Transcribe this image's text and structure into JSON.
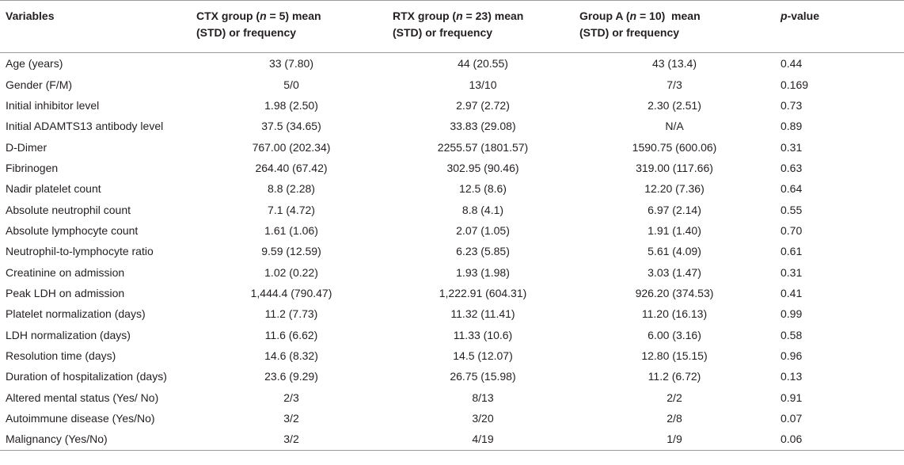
{
  "headers": {
    "variables": "Variables",
    "ctx": {
      "pre": "CTX group (",
      "n_var": "n",
      "post": " = 5) mean",
      "line2": "(STD) or frequency"
    },
    "rtx": {
      "pre": "RTX group (",
      "n_var": "n",
      "post": " = 23) mean",
      "line2": "(STD) or frequency"
    },
    "groupa": {
      "pre": "Group A (",
      "n_var": "n",
      "post": " = 10)  mean",
      "line2": "(STD) or frequency"
    },
    "pvalue": {
      "var": "p",
      "post": "-value"
    }
  },
  "rows": [
    {
      "variable": "Age (years)",
      "ctx": "33 (7.80)",
      "rtx": "44 (20.55)",
      "groupa": "43 (13.4)",
      "p": "0.44"
    },
    {
      "variable": "Gender (F/M)",
      "ctx": "5/0",
      "rtx": "13/10",
      "groupa": "7/3",
      "p": "0.169"
    },
    {
      "variable": "Initial inhibitor level",
      "ctx": "1.98 (2.50)",
      "rtx": "2.97 (2.72)",
      "groupa": "2.30 (2.51)",
      "p": "0.73"
    },
    {
      "variable": "Initial ADAMTS13 antibody level",
      "ctx": "37.5 (34.65)",
      "rtx": "33.83 (29.08)",
      "groupa": "N/A",
      "p": "0.89"
    },
    {
      "variable": "D-Dimer",
      "ctx": "767.00 (202.34)",
      "rtx": "2255.57 (1801.57)",
      "groupa": "1590.75 (600.06)",
      "p": "0.31"
    },
    {
      "variable": "Fibrinogen",
      "ctx": "264.40 (67.42)",
      "rtx": "302.95 (90.46)",
      "groupa": "319.00 (117.66)",
      "p": "0.63"
    },
    {
      "variable": "Nadir platelet count",
      "ctx": "8.8 (2.28)",
      "rtx": "12.5 (8.6)",
      "groupa": "12.20 (7.36)",
      "p": "0.64"
    },
    {
      "variable": "Absolute neutrophil count",
      "ctx": "7.1 (4.72)",
      "rtx": "8.8 (4.1)",
      "groupa": "6.97 (2.14)",
      "p": "0.55"
    },
    {
      "variable": "Absolute lymphocyte count",
      "ctx": "1.61 (1.06)",
      "rtx": "2.07 (1.05)",
      "groupa": "1.91 (1.40)",
      "p": "0.70"
    },
    {
      "variable": "Neutrophil-to-lymphocyte ratio",
      "ctx": "9.59 (12.59)",
      "rtx": "6.23 (5.85)",
      "groupa": "5.61 (4.09)",
      "p": "0.61"
    },
    {
      "variable": "Creatinine on admission",
      "ctx": "1.02 (0.22)",
      "rtx": "1.93 (1.98)",
      "groupa": "3.03 (1.47)",
      "p": "0.31"
    },
    {
      "variable": "Peak LDH on admission",
      "ctx": "1,444.4 (790.47)",
      "rtx": "1,222.91 (604.31)",
      "groupa": "926.20 (374.53)",
      "p": "0.41"
    },
    {
      "variable": "Platelet normalization (days)",
      "ctx": "11.2 (7.73)",
      "rtx": "11.32 (11.41)",
      "groupa": "11.20 (16.13)",
      "p": "0.99"
    },
    {
      "variable": "LDH normalization (days)",
      "ctx": "11.6 (6.62)",
      "rtx": "11.33 (10.6)",
      "groupa": "6.00 (3.16)",
      "p": "0.58"
    },
    {
      "variable": "Resolution time (days)",
      "ctx": "14.6 (8.32)",
      "rtx": "14.5 (12.07)",
      "groupa": "12.80 (15.15)",
      "p": "0.96"
    },
    {
      "variable": "Duration of hospitalization (days)",
      "ctx": "23.6 (9.29)",
      "rtx": "26.75 (15.98)",
      "groupa": "11.2 (6.72)",
      "p": "0.13"
    },
    {
      "variable": "Altered mental status (Yes/ No)",
      "ctx": "2/3",
      "rtx": "8/13",
      "groupa": "2/2",
      "p": "0.91"
    },
    {
      "variable": "Autoimmune disease (Yes/No)",
      "ctx": "3/2",
      "rtx": "3/20",
      "groupa": "2/8",
      "p": "0.07"
    },
    {
      "variable": "Malignancy (Yes/No)",
      "ctx": "3/2",
      "rtx": "4/19",
      "groupa": "1/9",
      "p": "0.06"
    }
  ]
}
